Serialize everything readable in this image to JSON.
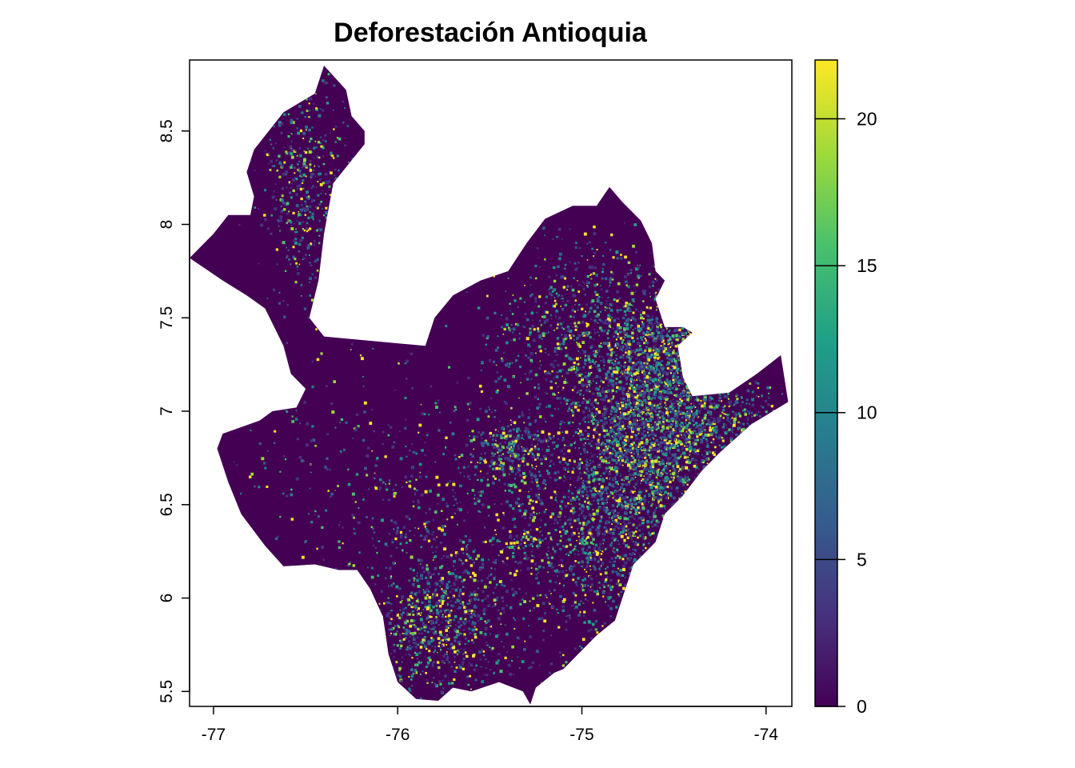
{
  "title": "Deforestación Antioquia",
  "x_axis": {
    "ticks": [
      {
        "value": -77,
        "label": "-77"
      },
      {
        "value": -76,
        "label": "-76"
      },
      {
        "value": -75,
        "label": "-75"
      },
      {
        "value": -74,
        "label": "-74"
      }
    ],
    "range": [
      -77.13,
      -73.86
    ]
  },
  "y_axis": {
    "ticks": [
      {
        "value": 5.5,
        "label": "5.5"
      },
      {
        "value": 6,
        "label": "6"
      },
      {
        "value": 6.5,
        "label": "6.5"
      },
      {
        "value": 7,
        "label": "7"
      },
      {
        "value": 7.5,
        "label": "7.5"
      },
      {
        "value": 8,
        "label": "8"
      },
      {
        "value": 8.5,
        "label": "8.5"
      }
    ],
    "range": [
      5.42,
      8.88
    ]
  },
  "legend": {
    "min": 0,
    "max": 22,
    "ticks": [
      {
        "value": 0,
        "label": "0"
      },
      {
        "value": 5,
        "label": "5"
      },
      {
        "value": 10,
        "label": "10"
      },
      {
        "value": 15,
        "label": "15"
      },
      {
        "value": 20,
        "label": "20"
      }
    ],
    "colors": [
      "#440154",
      "#46327e",
      "#365c8d",
      "#277f8e",
      "#1fa187",
      "#4ac16d",
      "#a0da39",
      "#fde725"
    ]
  },
  "map": {
    "fill_color": "#440154",
    "region_outline": [
      [
        -76.4,
        8.85
      ],
      [
        -76.28,
        8.72
      ],
      [
        -76.25,
        8.58
      ],
      [
        -76.18,
        8.5
      ],
      [
        -76.18,
        8.43
      ],
      [
        -76.35,
        8.22
      ],
      [
        -76.4,
        7.95
      ],
      [
        -76.43,
        7.7
      ],
      [
        -76.48,
        7.5
      ],
      [
        -76.4,
        7.4
      ],
      [
        -75.85,
        7.35
      ],
      [
        -75.8,
        7.5
      ],
      [
        -75.7,
        7.62
      ],
      [
        -75.55,
        7.7
      ],
      [
        -75.4,
        7.75
      ],
      [
        -75.3,
        7.9
      ],
      [
        -75.2,
        8.03
      ],
      [
        -75.05,
        8.1
      ],
      [
        -74.92,
        8.1
      ],
      [
        -74.85,
        8.2
      ],
      [
        -74.78,
        8.12
      ],
      [
        -74.68,
        8.02
      ],
      [
        -74.62,
        7.9
      ],
      [
        -74.6,
        7.75
      ],
      [
        -74.55,
        7.7
      ],
      [
        -74.6,
        7.6
      ],
      [
        -74.55,
        7.45
      ],
      [
        -74.45,
        7.45
      ],
      [
        -74.4,
        7.42
      ],
      [
        -74.48,
        7.35
      ],
      [
        -74.45,
        7.18
      ],
      [
        -74.4,
        7.08
      ],
      [
        -74.2,
        7.1
      ],
      [
        -74.05,
        7.2
      ],
      [
        -73.92,
        7.3
      ],
      [
        -73.88,
        7.05
      ],
      [
        -74.08,
        6.93
      ],
      [
        -74.25,
        6.78
      ],
      [
        -74.35,
        6.68
      ],
      [
        -74.45,
        6.55
      ],
      [
        -74.55,
        6.45
      ],
      [
        -74.6,
        6.3
      ],
      [
        -74.72,
        6.18
      ],
      [
        -74.78,
        6.0
      ],
      [
        -74.82,
        5.88
      ],
      [
        -74.92,
        5.8
      ],
      [
        -75.0,
        5.72
      ],
      [
        -75.1,
        5.62
      ],
      [
        -75.15,
        5.6
      ],
      [
        -75.25,
        5.52
      ],
      [
        -75.28,
        5.43
      ],
      [
        -75.32,
        5.5
      ],
      [
        -75.45,
        5.55
      ],
      [
        -75.6,
        5.5
      ],
      [
        -75.7,
        5.52
      ],
      [
        -75.78,
        5.45
      ],
      [
        -75.9,
        5.46
      ],
      [
        -76.0,
        5.55
      ],
      [
        -76.05,
        5.7
      ],
      [
        -76.08,
        5.9
      ],
      [
        -76.15,
        6.05
      ],
      [
        -76.22,
        6.15
      ],
      [
        -76.32,
        6.15
      ],
      [
        -76.45,
        6.18
      ],
      [
        -76.62,
        6.17
      ],
      [
        -76.72,
        6.28
      ],
      [
        -76.85,
        6.45
      ],
      [
        -76.92,
        6.62
      ],
      [
        -76.98,
        6.8
      ],
      [
        -76.95,
        6.88
      ],
      [
        -76.75,
        6.95
      ],
      [
        -76.68,
        7.0
      ],
      [
        -76.55,
        7.02
      ],
      [
        -76.5,
        7.12
      ],
      [
        -76.58,
        7.2
      ],
      [
        -76.62,
        7.35
      ],
      [
        -76.72,
        7.55
      ],
      [
        -76.82,
        7.62
      ],
      [
        -76.95,
        7.7
      ],
      [
        -77.13,
        7.82
      ],
      [
        -77.0,
        7.95
      ],
      [
        -76.92,
        8.05
      ],
      [
        -76.8,
        8.05
      ],
      [
        -76.78,
        8.15
      ],
      [
        -76.82,
        8.28
      ],
      [
        -76.78,
        8.4
      ],
      [
        -76.7,
        8.5
      ],
      [
        -76.62,
        8.6
      ],
      [
        -76.45,
        8.7
      ]
    ]
  },
  "hotspots": [
    {
      "x": -74.65,
      "y": 6.85,
      "sx": 0.22,
      "sy": 0.28,
      "n": 2200
    },
    {
      "x": -74.6,
      "y": 7.3,
      "sx": 0.18,
      "sy": 0.2,
      "n": 900
    },
    {
      "x": -75.0,
      "y": 7.45,
      "sx": 0.25,
      "sy": 0.25,
      "n": 700
    },
    {
      "x": -74.9,
      "y": 6.4,
      "sx": 0.2,
      "sy": 0.3,
      "n": 900
    },
    {
      "x": -75.8,
      "y": 5.85,
      "sx": 0.15,
      "sy": 0.18,
      "n": 600
    },
    {
      "x": -76.5,
      "y": 8.2,
      "sx": 0.12,
      "sy": 0.3,
      "n": 500
    },
    {
      "x": -75.4,
      "y": 6.8,
      "sx": 0.1,
      "sy": 0.08,
      "n": 250
    },
    {
      "x": -74.25,
      "y": 6.95,
      "sx": 0.18,
      "sy": 0.1,
      "n": 350
    },
    {
      "x": -75.5,
      "y": 6.3,
      "sx": 0.4,
      "sy": 0.4,
      "n": 900
    },
    {
      "x": -76.2,
      "y": 6.7,
      "sx": 0.4,
      "sy": 0.4,
      "n": 250
    }
  ]
}
